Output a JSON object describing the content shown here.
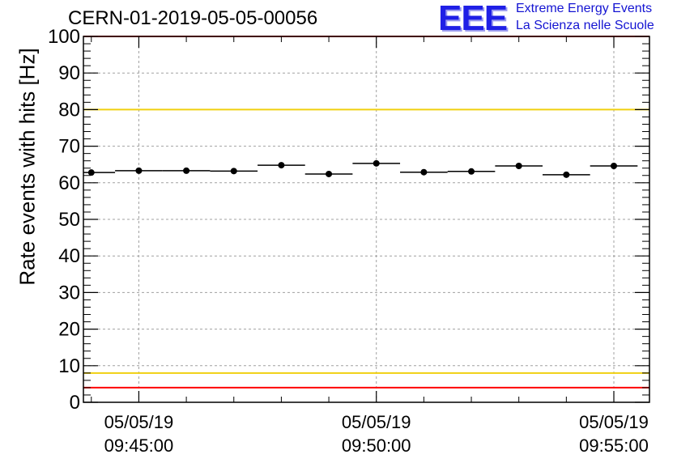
{
  "chart_data": {
    "type": "scatter",
    "title": "CERN-01-2019-05-05-00056",
    "ylabel": "Rate events with hits [Hz]",
    "xlabel": "",
    "ylim": [
      0,
      100
    ],
    "yticks": [
      0,
      10,
      20,
      30,
      40,
      50,
      60,
      70,
      80,
      90,
      100
    ],
    "xlim": [
      "05/05/19 09:43:50",
      "05/05/19 09:55:45"
    ],
    "xticks": [
      {
        "date": "05/05/19",
        "time": "09:45:00"
      },
      {
        "date": "05/05/19",
        "time": "09:50:00"
      },
      {
        "date": "05/05/19",
        "time": "09:55:00"
      }
    ],
    "grid": true,
    "series": [
      {
        "values": [
          {
            "t": "09:44:00",
            "y": 62.8,
            "yerr": 0.6
          },
          {
            "t": "09:45:00",
            "y": 63.3,
            "yerr": 0.6
          },
          {
            "t": "09:46:00",
            "y": 63.3,
            "yerr": 0.6
          },
          {
            "t": "09:47:00",
            "y": 63.2,
            "yerr": 0.6
          },
          {
            "t": "09:48:00",
            "y": 64.8,
            "yerr": 0.6
          },
          {
            "t": "09:49:00",
            "y": 62.4,
            "yerr": 0.6
          },
          {
            "t": "09:50:00",
            "y": 65.3,
            "yerr": 0.6
          },
          {
            "t": "09:51:00",
            "y": 62.9,
            "yerr": 0.6
          },
          {
            "t": "09:52:00",
            "y": 63.1,
            "yerr": 0.6
          },
          {
            "t": "09:53:00",
            "y": 64.6,
            "yerr": 0.6
          },
          {
            "t": "09:54:00",
            "y": 62.2,
            "yerr": 0.6
          },
          {
            "t": "09:55:00",
            "y": 64.6,
            "yerr": 0.6
          }
        ],
        "bin_width_seconds": 60,
        "color": "#000000"
      }
    ],
    "reference_lines": [
      {
        "y": 100,
        "color": "#ff0000"
      },
      {
        "y": 80,
        "color": "#f0d010"
      },
      {
        "y": 8,
        "color": "#f0d010"
      },
      {
        "y": 4,
        "color": "#ff0000"
      }
    ]
  },
  "logo": {
    "mark": "EEE",
    "line1": "Extreme Energy Events",
    "line2": "La Scienza nelle Scuole",
    "color": "#1f1fe6"
  }
}
